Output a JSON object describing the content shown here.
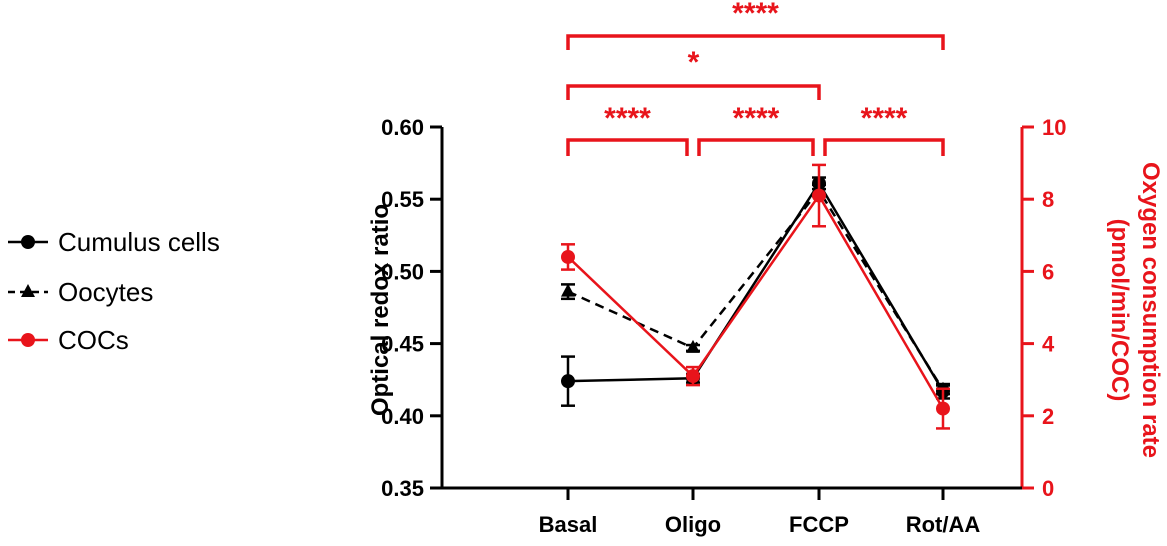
{
  "chart_data": {
    "type": "line",
    "categories": [
      "Basal",
      "Oligo",
      "FCCP",
      "Rot/AA"
    ],
    "y_left": {
      "label": "Optical redox ratio",
      "lim": [
        0.35,
        0.6
      ],
      "ticks": [
        "0.35",
        "0.40",
        "0.45",
        "0.50",
        "0.55",
        "0.60"
      ]
    },
    "y_right": {
      "label_line1": "Oxygen consumption rate",
      "label_line2": "(pmol/min/COC)",
      "lim": [
        0,
        10
      ],
      "ticks": [
        "0",
        "2",
        "4",
        "6",
        "8",
        "10"
      ],
      "color": "#e8141b"
    },
    "series": [
      {
        "name": "Cumulus cells",
        "axis": "left",
        "color": "#000000",
        "marker": "circle",
        "dash": false,
        "values": [
          0.424,
          0.426,
          0.561,
          0.417
        ],
        "errors": [
          0.017,
          0.003,
          0.004,
          0.005
        ]
      },
      {
        "name": "Oocytes",
        "axis": "left",
        "color": "#000000",
        "marker": "triangle",
        "dash": true,
        "values": [
          0.486,
          0.447,
          0.556,
          0.418
        ],
        "errors": [
          0.005,
          0.002,
          0.004,
          0.003
        ]
      },
      {
        "name": "COCs",
        "axis": "right",
        "color": "#e8141b",
        "marker": "circle",
        "dash": false,
        "values": [
          6.4,
          3.1,
          8.1,
          2.2
        ],
        "errors": [
          0.35,
          0.25,
          0.85,
          0.55
        ]
      }
    ],
    "significance": [
      {
        "from": 0,
        "to": 3,
        "label": "****"
      },
      {
        "from": 0,
        "to": 2,
        "label": "*"
      },
      {
        "from": 0,
        "to": 1,
        "label": "****"
      },
      {
        "from": 1,
        "to": 2,
        "label": "****"
      },
      {
        "from": 2,
        "to": 3,
        "label": "****"
      }
    ],
    "legend_position": "left"
  }
}
